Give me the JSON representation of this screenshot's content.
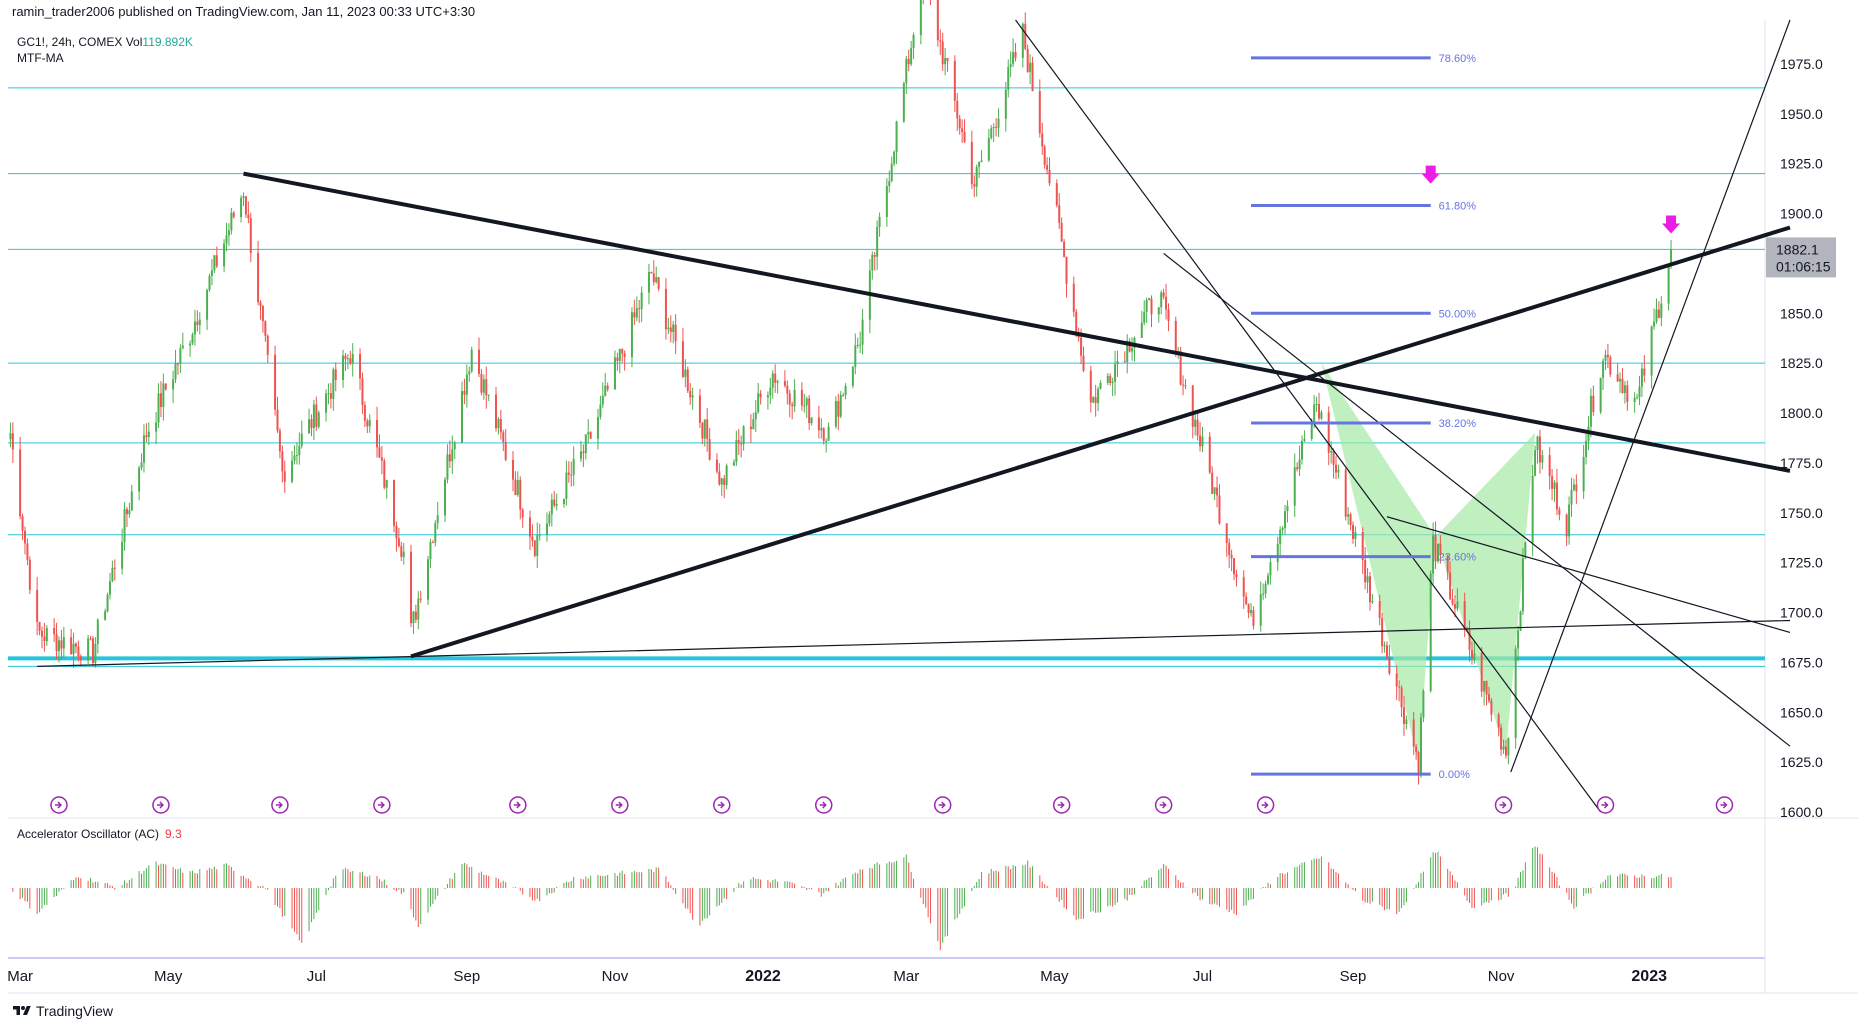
{
  "header": {
    "publisher_line": "ramin_trader2006 published on TradingView.com, Jan 11, 2023 00:33 UTC+3:30"
  },
  "symbol": {
    "line": "GC1!, 24h, COMEX",
    "vol_label": "Vol",
    "vol_value": "119.892K",
    "indicator": "MTF-MA"
  },
  "price_tag": {
    "price": "1882.1",
    "countdown": "01:06:15",
    "bg_color": "#b2b5be"
  },
  "oscillator": {
    "name": "Accelerator Oscillator (AC)",
    "value": "9.3"
  },
  "footer": {
    "brand": "TradingView"
  },
  "colors": {
    "up": "#4caf50",
    "down": "#ef5350",
    "level": "#26c6da",
    "fib": "#6674e0",
    "marker": "#e91ee6",
    "pattern": "#a5e8a5"
  },
  "chart_data": {
    "type": "candlestick",
    "symbol": "GC1!",
    "timeframe": "24h",
    "price_axis": {
      "ticks": [
        1600,
        1625,
        1650,
        1675,
        1700,
        1725,
        1750,
        1775,
        1800,
        1825,
        1850,
        1875,
        1900,
        1925,
        1950,
        1975
      ],
      "tick_labels": [
        "1600.0",
        "1625.0",
        "1650.0",
        "1675.0",
        "1700.0",
        "1725.0",
        "1750.0",
        "1775.0",
        "1800.0",
        "1825.0",
        "1850.0",
        "1875.0",
        "1900.0",
        "1925.0",
        "1950.0",
        "1975.0"
      ],
      "range": [
        1600,
        1997
      ]
    },
    "time_axis": {
      "labels": [
        "Mar",
        "May",
        "Jul",
        "Sep",
        "Nov",
        "2022",
        "Mar",
        "May",
        "Jul",
        "Sep",
        "Nov",
        "2023"
      ],
      "range": [
        "2021-02-24",
        "2023-02-28"
      ]
    },
    "price_path": [
      [
        "2021-02-25",
        1790
      ],
      [
        "2021-03-08",
        1690
      ],
      [
        "2021-03-31",
        1680
      ],
      [
        "2021-04-22",
        1790
      ],
      [
        "2021-05-10",
        1840
      ],
      [
        "2021-06-01",
        1912
      ],
      [
        "2021-06-17",
        1770
      ],
      [
        "2021-07-15",
        1830
      ],
      [
        "2021-08-06",
        1730
      ],
      [
        "2021-08-09",
        1690
      ],
      [
        "2021-09-03",
        1832
      ],
      [
        "2021-09-29",
        1735
      ],
      [
        "2021-10-21",
        1785
      ],
      [
        "2021-11-16",
        1870
      ],
      [
        "2021-12-15",
        1765
      ],
      [
        "2022-01-05",
        1820
      ],
      [
        "2022-01-28",
        1790
      ],
      [
        "2022-02-10",
        1838
      ],
      [
        "2022-03-08",
        2020
      ],
      [
        "2022-03-29",
        1915
      ],
      [
        "2022-04-18",
        1990
      ],
      [
        "2022-05-16",
        1805
      ],
      [
        "2022-06-13",
        1860
      ],
      [
        "2022-07-21",
        1695
      ],
      [
        "2022-08-17",
        1805
      ],
      [
        "2022-09-28",
        1625
      ],
      [
        "2022-10-04",
        1735
      ],
      [
        "2022-11-03",
        1630
      ],
      [
        "2022-11-15",
        1785
      ],
      [
        "2022-11-28",
        1745
      ],
      [
        "2022-12-13",
        1830
      ],
      [
        "2022-12-27",
        1805
      ],
      [
        "2023-01-10",
        1882
      ]
    ],
    "horizontal_levels": [
      1963,
      1920,
      1882,
      1825,
      1785,
      1739,
      1677,
      1673
    ],
    "trend_lines": [
      {
        "from": [
          "2021-06-01",
          1920
        ],
        "to": [
          "2023-02-28",
          1771
        ],
        "weight": "thick"
      },
      {
        "from": [
          "2021-08-09",
          1678
        ],
        "to": [
          "2023-02-28",
          1893
        ],
        "weight": "thick"
      },
      {
        "from": [
          "2021-03-08",
          1673
        ],
        "to": [
          "2023-02-28",
          1696
        ],
        "weight": "thin"
      },
      {
        "from": [
          "2022-04-15",
          1997
        ],
        "to": [
          "2022-12-12",
          1600
        ],
        "weight": "thin"
      },
      {
        "from": [
          "2022-06-15",
          1880
        ],
        "to": [
          "2023-02-28",
          1633
        ],
        "weight": "thin"
      },
      {
        "from": [
          "2022-09-15",
          1748
        ],
        "to": [
          "2023-02-28",
          1690
        ],
        "weight": "thin"
      },
      {
        "from": [
          "2022-11-05",
          1620
        ],
        "to": [
          "2023-02-28",
          1997
        ],
        "weight": "thin"
      }
    ],
    "fibonacci": {
      "levels": [
        {
          "label": "78.60%",
          "price": 1978
        },
        {
          "label": "61.80%",
          "price": 1904
        },
        {
          "label": "50.00%",
          "price": 1850
        },
        {
          "label": "38.20%",
          "price": 1795
        },
        {
          "label": "23.60%",
          "price": 1728
        },
        {
          "label": "0.00%",
          "price": 1619
        }
      ],
      "from": "2022-07-21",
      "to": "2022-10-03"
    },
    "harmonic_pattern": [
      [
        "2022-08-19",
        1825
      ],
      [
        "2022-09-28",
        1625
      ],
      [
        "2022-10-05",
        1738
      ],
      [
        "2022-11-03",
        1630
      ],
      [
        "2022-11-15",
        1790
      ]
    ],
    "markers": [
      {
        "date": "2022-10-03",
        "price": 1918,
        "shape": "arrow-down"
      },
      {
        "date": "2023-01-10",
        "price": 1893,
        "shape": "arrow-down"
      }
    ],
    "event_icons": [
      "2021-03-17",
      "2021-04-28",
      "2021-06-16",
      "2021-07-28",
      "2021-09-22",
      "2021-11-03",
      "2021-12-15",
      "2022-01-26",
      "2022-03-16",
      "2022-05-04",
      "2022-06-15",
      "2022-07-27",
      "2022-11-02",
      "2022-12-14",
      "2023-02-01"
    ],
    "oscillator_path": [
      [
        "2021-02-25",
        0
      ],
      [
        "2021-03-08",
        -20
      ],
      [
        "2021-03-25",
        10
      ],
      [
        "2021-04-10",
        0
      ],
      [
        "2021-04-25",
        20
      ],
      [
        "2021-05-10",
        12
      ],
      [
        "2021-05-25",
        18
      ],
      [
        "2021-06-10",
        0
      ],
      [
        "2021-06-25",
        -45
      ],
      [
        "2021-07-10",
        15
      ],
      [
        "2021-07-25",
        10
      ],
      [
        "2021-08-06",
        -5
      ],
      [
        "2021-08-12",
        -30
      ],
      [
        "2021-08-30",
        20
      ],
      [
        "2021-09-15",
        5
      ],
      [
        "2021-09-30",
        -10
      ],
      [
        "2021-10-15",
        8
      ],
      [
        "2021-11-05",
        12
      ],
      [
        "2021-11-20",
        15
      ],
      [
        "2021-12-05",
        -30
      ],
      [
        "2021-12-25",
        8
      ],
      [
        "2022-01-10",
        5
      ],
      [
        "2022-01-25",
        -5
      ],
      [
        "2022-02-10",
        15
      ],
      [
        "2022-03-01",
        25
      ],
      [
        "2022-03-15",
        -48
      ],
      [
        "2022-04-01",
        12
      ],
      [
        "2022-04-20",
        20
      ],
      [
        "2022-05-10",
        -25
      ],
      [
        "2022-05-30",
        -10
      ],
      [
        "2022-06-15",
        18
      ],
      [
        "2022-07-01",
        -10
      ],
      [
        "2022-07-15",
        -20
      ],
      [
        "2022-08-01",
        10
      ],
      [
        "2022-08-19",
        25
      ],
      [
        "2022-09-05",
        -10
      ],
      [
        "2022-09-20",
        -20
      ],
      [
        "2022-10-05",
        30
      ],
      [
        "2022-10-20",
        -15
      ],
      [
        "2022-11-05",
        -5
      ],
      [
        "2022-11-15",
        35
      ],
      [
        "2022-12-01",
        -15
      ],
      [
        "2022-12-15",
        10
      ],
      [
        "2023-01-10",
        9.3
      ]
    ]
  }
}
